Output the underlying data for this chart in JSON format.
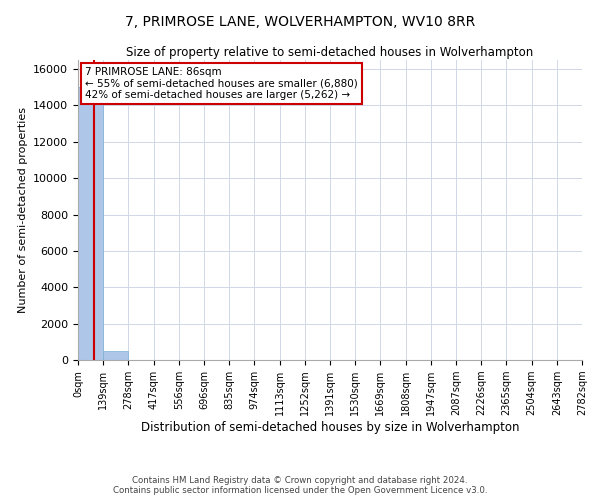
{
  "title": "7, PRIMROSE LANE, WOLVERHAMPTON, WV10 8RR",
  "subtitle": "Size of property relative to semi-detached houses in Wolverhampton",
  "xlabel": "Distribution of semi-detached houses by size in Wolverhampton",
  "ylabel": "Number of semi-detached properties",
  "bin_labels": [
    "0sqm",
    "139sqm",
    "278sqm",
    "417sqm",
    "556sqm",
    "696sqm",
    "835sqm",
    "974sqm",
    "1113sqm",
    "1252sqm",
    "1391sqm",
    "1530sqm",
    "1669sqm",
    "1808sqm",
    "1947sqm",
    "2087sqm",
    "2226sqm",
    "2365sqm",
    "2504sqm",
    "2643sqm",
    "2782sqm"
  ],
  "bin_edges": [
    0,
    139,
    278,
    417,
    556,
    696,
    835,
    974,
    1113,
    1252,
    1391,
    1530,
    1669,
    1808,
    1947,
    2087,
    2226,
    2365,
    2504,
    2643,
    2782
  ],
  "bar_heights": [
    15000,
    500,
    0,
    0,
    0,
    0,
    0,
    0,
    0,
    0,
    0,
    0,
    0,
    0,
    0,
    0,
    0,
    0,
    0,
    0
  ],
  "bar_color": "#aec6e8",
  "bar_edge_color": "#7bafd4",
  "ylim": [
    0,
    16500
  ],
  "yticks": [
    0,
    2000,
    4000,
    6000,
    8000,
    10000,
    12000,
    14000,
    16000
  ],
  "property_size": 86,
  "property_label": "7 PRIMROSE LANE: 86sqm",
  "pct_smaller": 55,
  "count_smaller": 6880,
  "pct_larger": 42,
  "count_larger": 5262,
  "vline_color": "#cc0000",
  "annotation_box_edge_color": "#cc0000",
  "grid_color": "#d0d8e8",
  "footer_line1": "Contains HM Land Registry data © Crown copyright and database right 2024.",
  "footer_line2": "Contains public sector information licensed under the Open Government Licence v3.0."
}
